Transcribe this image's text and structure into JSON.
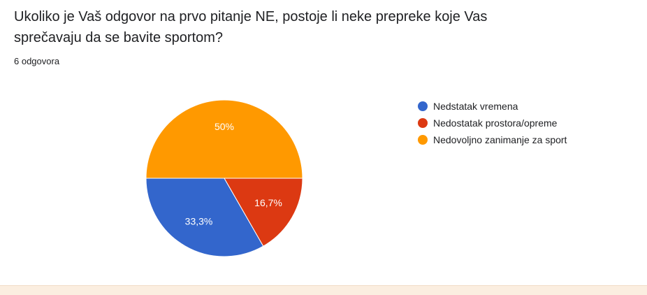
{
  "question": {
    "title": "Ukoliko je Vaš odgovor na prvo pitanje NE, postoje li neke prepreke koje Vas sprečavaju da se bavite sportom?",
    "response_count": "6 odgovora"
  },
  "chart_data": {
    "type": "pie",
    "slices": [
      {
        "name": "Nedstatak vremena",
        "value": 33.3,
        "label": "33,3%",
        "color": "#3366cc"
      },
      {
        "name": "Nedostatak prostora/opreme",
        "value": 16.7,
        "label": "16,7%",
        "color": "#dc3912"
      },
      {
        "name": "Nedovoljno zanimanje za sport",
        "value": 50,
        "label": "50%",
        "color": "#ff9900"
      }
    ],
    "legend_position": "right"
  }
}
